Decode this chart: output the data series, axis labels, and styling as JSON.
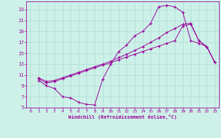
{
  "xlabel": "Windchill (Refroidissement éolien,°C)",
  "bg_color": "#cdf0e8",
  "grid_color": "#aaddd4",
  "line_color": "#990099",
  "xlim": [
    -0.5,
    23.5
  ],
  "ylim": [
    5,
    24.5
  ],
  "yticks": [
    5,
    7,
    9,
    11,
    13,
    15,
    17,
    19,
    21,
    23
  ],
  "xticks": [
    0,
    1,
    2,
    3,
    4,
    5,
    6,
    7,
    8,
    9,
    10,
    11,
    12,
    13,
    14,
    15,
    16,
    17,
    18,
    19,
    20,
    21,
    22,
    23
  ],
  "line1_x": [
    1,
    2,
    3,
    4,
    5,
    6,
    7,
    8,
    9,
    10,
    11,
    12,
    13,
    14,
    15,
    16,
    17,
    18,
    19,
    20,
    21,
    22,
    23
  ],
  "line1_y": [
    10.0,
    9.0,
    8.5,
    7.0,
    6.8,
    6.0,
    5.6,
    5.5,
    10.2,
    13.0,
    15.3,
    16.5,
    18.2,
    19.0,
    20.5,
    23.5,
    23.8,
    23.5,
    22.5,
    17.3,
    16.8,
    16.2,
    13.3
  ],
  "line2_x": [
    1,
    2,
    3,
    4,
    5,
    6,
    7,
    8,
    9,
    10,
    11,
    12,
    13,
    14,
    15,
    16,
    17,
    18,
    19,
    20,
    21,
    22,
    23
  ],
  "line2_y": [
    10.3,
    9.5,
    9.8,
    10.3,
    10.8,
    11.3,
    11.8,
    12.3,
    12.8,
    13.2,
    13.8,
    14.3,
    14.8,
    15.3,
    15.8,
    16.3,
    16.8,
    17.3,
    20.0,
    20.3,
    17.3,
    16.2,
    13.3
  ],
  "line3_x": [
    1,
    2,
    3,
    4,
    5,
    6,
    7,
    8,
    9,
    10,
    11,
    12,
    13,
    14,
    15,
    16,
    17,
    18,
    19,
    20,
    21,
    22,
    23
  ],
  "line3_y": [
    10.5,
    9.8,
    10.0,
    10.5,
    11.0,
    11.5,
    12.0,
    12.5,
    13.0,
    13.5,
    14.2,
    14.8,
    15.5,
    16.2,
    17.0,
    17.8,
    18.8,
    19.5,
    20.3,
    20.5,
    17.3,
    16.2,
    13.3
  ]
}
